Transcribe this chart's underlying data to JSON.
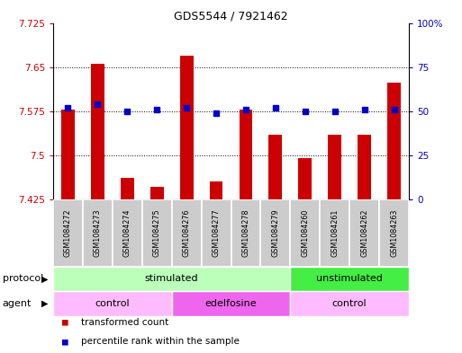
{
  "title": "GDS5544 / 7921462",
  "samples": [
    "GSM1084272",
    "GSM1084273",
    "GSM1084274",
    "GSM1084275",
    "GSM1084276",
    "GSM1084277",
    "GSM1084278",
    "GSM1084279",
    "GSM1084260",
    "GSM1084261",
    "GSM1084262",
    "GSM1084263"
  ],
  "transformed_count": [
    7.578,
    7.656,
    7.462,
    7.447,
    7.67,
    7.455,
    7.578,
    7.535,
    7.495,
    7.535,
    7.535,
    7.623
  ],
  "percentile_rank": [
    52,
    54,
    50,
    51,
    52,
    49,
    51,
    52,
    50,
    50,
    51,
    51
  ],
  "y_min": 7.425,
  "y_max": 7.725,
  "y_ticks": [
    7.425,
    7.5,
    7.575,
    7.65,
    7.725
  ],
  "y_tick_labels": [
    "7.425",
    "7.5",
    "7.575",
    "7.65",
    "7.725"
  ],
  "y2_ticks_pct": [
    0,
    25,
    50,
    75,
    100
  ],
  "y2_tick_labels": [
    "0",
    "25",
    "50",
    "75",
    "100%"
  ],
  "bar_color": "#cc0000",
  "dot_color": "#0000cc",
  "protocol_groups": [
    {
      "label": "stimulated",
      "start": 0,
      "end": 8,
      "color": "#bbffbb"
    },
    {
      "label": "unstimulated",
      "start": 8,
      "end": 12,
      "color": "#44ee44"
    }
  ],
  "agent_groups": [
    {
      "label": "control",
      "start": 0,
      "end": 4,
      "color": "#ffbbff"
    },
    {
      "label": "edelfosine",
      "start": 4,
      "end": 8,
      "color": "#ee66ee"
    },
    {
      "label": "control",
      "start": 8,
      "end": 12,
      "color": "#ffbbff"
    }
  ],
  "legend_items": [
    {
      "label": "transformed count",
      "color": "#cc0000"
    },
    {
      "label": "percentile rank within the sample",
      "color": "#0000cc"
    }
  ],
  "bg_color": "#ffffff",
  "grid_color": "#000000",
  "sample_bg": "#cccccc",
  "bar_width": 0.45
}
